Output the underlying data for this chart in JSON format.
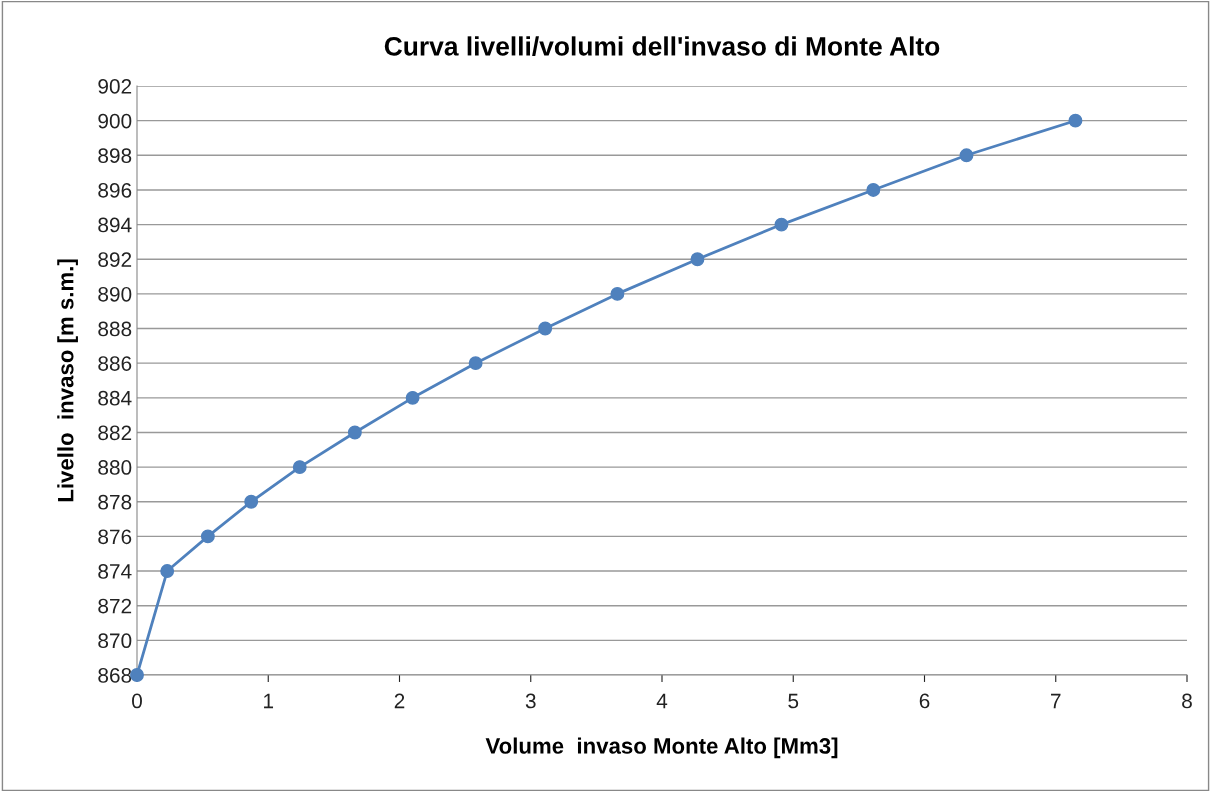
{
  "chart_data": {
    "type": "line",
    "title": "Curva livelli/volumi dell'invaso di Monte Alto",
    "xlabel": "Volume  invaso Monte Alto [Mm3]",
    "ylabel": "Livello  invaso [m s.m.]",
    "x": [
      0,
      0.23,
      0.54,
      0.87,
      1.24,
      1.66,
      2.1,
      2.58,
      3.11,
      3.66,
      4.27,
      4.91,
      5.61,
      6.32,
      7.15
    ],
    "series": [
      {
        "color": "#4f81bd",
        "values": [
          868,
          874,
          876,
          878,
          880,
          882,
          884,
          886,
          888,
          890,
          892,
          894,
          896,
          898,
          900
        ]
      }
    ],
    "xlim": [
      0,
      8
    ],
    "xticks": [
      0,
      1,
      2,
      3,
      4,
      5,
      6,
      7,
      8
    ],
    "ylim": [
      868,
      902
    ],
    "yticks": [
      868,
      870,
      872,
      874,
      876,
      878,
      880,
      882,
      884,
      886,
      888,
      890,
      892,
      894,
      896,
      898,
      900,
      902
    ],
    "grid": "y",
    "marker": "circle",
    "line_style": "solid",
    "legend": false
  }
}
